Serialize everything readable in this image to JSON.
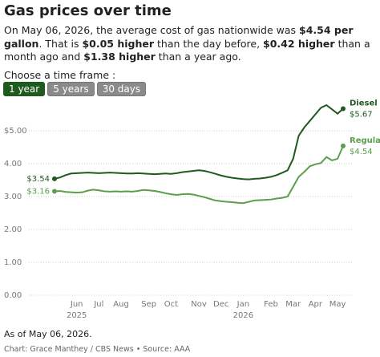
{
  "header": {
    "title": "Gas prices over time",
    "description": [
      "On May 06, 2026, the average cost of gas nationwide was ",
      "$4.54 per gallon",
      ". That is ",
      "$0.05 higher",
      " than the day before, ",
      "$0.42 higher",
      " than a month ago and ",
      "$1.38 higher",
      " than a year ago."
    ],
    "time_frame_label": "Choose a time frame :",
    "time_frames": [
      "1 year",
      "5 years",
      "30 days"
    ]
  },
  "chart_data": {
    "type": "line",
    "categories": [
      null,
      null,
      null,
      null,
      "Jun\n2025",
      null,
      null,
      null,
      "Jul",
      null,
      null,
      null,
      "Aug",
      null,
      null,
      null,
      null,
      "Sep",
      null,
      null,
      null,
      "Oct",
      null,
      null,
      null,
      null,
      "Nov",
      null,
      null,
      null,
      "Dec",
      null,
      null,
      null,
      "Jan\n2026",
      null,
      null,
      null,
      null,
      "Feb",
      null,
      null,
      null,
      "Mar",
      null,
      null,
      null,
      "Apr",
      null,
      null,
      null,
      "May",
      null
    ],
    "series": [
      {
        "name": "Diesel",
        "color": "#1f5a1f",
        "start_value_label": "$3.54",
        "end_value_label": "$5.67",
        "values": [
          3.54,
          3.58,
          3.65,
          3.7,
          3.71,
          3.72,
          3.73,
          3.72,
          3.71,
          3.72,
          3.73,
          3.72,
          3.71,
          3.7,
          3.7,
          3.71,
          3.7,
          3.69,
          3.68,
          3.69,
          3.7,
          3.69,
          3.71,
          3.74,
          3.76,
          3.78,
          3.8,
          3.78,
          3.74,
          3.69,
          3.64,
          3.6,
          3.57,
          3.55,
          3.53,
          3.52,
          3.54,
          3.55,
          3.57,
          3.6,
          3.65,
          3.72,
          3.8,
          4.15,
          4.85,
          5.1,
          5.3,
          5.5,
          5.7,
          5.78,
          5.65,
          5.52,
          5.67
        ]
      },
      {
        "name": "Regular",
        "color": "#5c9e4c",
        "start_value_label": "$3.16",
        "end_value_label": "$4.54",
        "values": [
          3.16,
          3.17,
          3.14,
          3.13,
          3.12,
          3.13,
          3.18,
          3.21,
          3.19,
          3.16,
          3.15,
          3.16,
          3.15,
          3.16,
          3.15,
          3.17,
          3.2,
          3.19,
          3.17,
          3.14,
          3.1,
          3.07,
          3.05,
          3.07,
          3.08,
          3.06,
          3.02,
          2.98,
          2.93,
          2.88,
          2.86,
          2.84,
          2.83,
          2.81,
          2.8,
          2.84,
          2.88,
          2.89,
          2.9,
          2.91,
          2.94,
          2.96,
          3.0,
          3.3,
          3.6,
          3.75,
          3.92,
          3.98,
          4.02,
          4.2,
          4.1,
          4.15,
          4.54
        ]
      }
    ],
    "ylim": [
      0,
      6
    ],
    "yticks": [
      {
        "value": 0,
        "label": "0.00"
      },
      {
        "value": 1,
        "label": "1.00"
      },
      {
        "value": 2,
        "label": "2.00"
      },
      {
        "value": 3,
        "label": "3.00"
      },
      {
        "value": 4,
        "label": "4.00"
      },
      {
        "value": 5,
        "label": "$5.00"
      }
    ],
    "grid": true
  },
  "footer": {
    "as_of": "As of May 06, 2026.",
    "source": "Chart: Grace Manthey / CBS News • Source: AAA"
  }
}
